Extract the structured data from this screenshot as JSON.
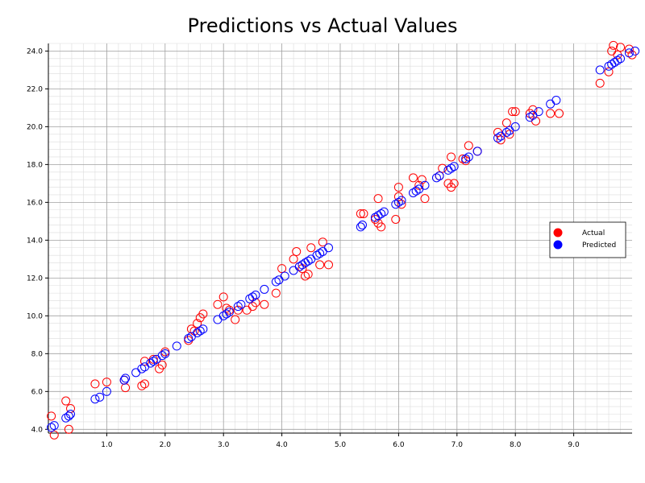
{
  "chart_data": {
    "type": "scatter",
    "title": "Predictions vs Actual Values",
    "xlabel": "",
    "ylabel": "",
    "xlim": [
      0,
      10
    ],
    "ylim": [
      3.8,
      24.4
    ],
    "x_ticks": [
      "1.0",
      "2.0",
      "3.0",
      "4.0",
      "5.0",
      "6.0",
      "7.0",
      "8.0",
      "9.0"
    ],
    "y_ticks": [
      "4.0",
      "6.0",
      "8.0",
      "10.0",
      "12.0",
      "14.0",
      "16.0",
      "18.0",
      "20.0",
      "22.0",
      "24.0"
    ],
    "grid": true,
    "legend_position": "center-right",
    "series": [
      {
        "name": "Actual",
        "color": "#ff0000",
        "marker": "open-circle",
        "points": [
          [
            0.05,
            4.7
          ],
          [
            0.1,
            3.7
          ],
          [
            0.3,
            5.5
          ],
          [
            0.35,
            4.0
          ],
          [
            0.38,
            5.1
          ],
          [
            0.8,
            6.4
          ],
          [
            1.0,
            6.5
          ],
          [
            1.3,
            6.6
          ],
          [
            1.32,
            6.2
          ],
          [
            1.6,
            6.3
          ],
          [
            1.65,
            6.4
          ],
          [
            1.65,
            7.6
          ],
          [
            1.8,
            7.7
          ],
          [
            1.9,
            7.2
          ],
          [
            1.95,
            7.4
          ],
          [
            2.0,
            8.1
          ],
          [
            2.4,
            8.7
          ],
          [
            2.45,
            9.3
          ],
          [
            2.5,
            9.2
          ],
          [
            2.55,
            9.6
          ],
          [
            2.6,
            9.9
          ],
          [
            2.65,
            10.1
          ],
          [
            2.9,
            10.6
          ],
          [
            3.0,
            11.0
          ],
          [
            3.05,
            10.4
          ],
          [
            3.1,
            10.3
          ],
          [
            3.2,
            9.8
          ],
          [
            3.25,
            10.3
          ],
          [
            3.4,
            10.3
          ],
          [
            3.5,
            10.5
          ],
          [
            3.55,
            10.7
          ],
          [
            3.7,
            10.6
          ],
          [
            3.9,
            11.2
          ],
          [
            4.0,
            12.5
          ],
          [
            4.2,
            13.0
          ],
          [
            4.25,
            13.4
          ],
          [
            4.3,
            12.6
          ],
          [
            4.35,
            12.5
          ],
          [
            4.4,
            12.1
          ],
          [
            4.45,
            12.2
          ],
          [
            4.5,
            13.6
          ],
          [
            4.65,
            12.7
          ],
          [
            4.7,
            13.9
          ],
          [
            4.8,
            12.7
          ],
          [
            5.35,
            15.4
          ],
          [
            5.4,
            15.4
          ],
          [
            5.6,
            15.1
          ],
          [
            5.65,
            14.9
          ],
          [
            5.65,
            16.2
          ],
          [
            5.7,
            14.7
          ],
          [
            5.95,
            15.1
          ],
          [
            6.0,
            16.3
          ],
          [
            6.0,
            16.8
          ],
          [
            6.05,
            15.9
          ],
          [
            6.25,
            17.3
          ],
          [
            6.35,
            16.9
          ],
          [
            6.4,
            17.2
          ],
          [
            6.45,
            16.2
          ],
          [
            6.7,
            17.4
          ],
          [
            6.75,
            17.8
          ],
          [
            6.85,
            17.0
          ],
          [
            6.9,
            16.8
          ],
          [
            6.9,
            18.4
          ],
          [
            6.95,
            17.0
          ],
          [
            7.1,
            18.3
          ],
          [
            7.15,
            18.2
          ],
          [
            7.2,
            19.0
          ],
          [
            7.35,
            18.7
          ],
          [
            7.7,
            19.7
          ],
          [
            7.75,
            19.3
          ],
          [
            7.85,
            20.2
          ],
          [
            7.9,
            19.6
          ],
          [
            7.95,
            20.8
          ],
          [
            8.0,
            20.8
          ],
          [
            8.25,
            20.7
          ],
          [
            8.3,
            20.9
          ],
          [
            8.35,
            20.3
          ],
          [
            8.6,
            20.7
          ],
          [
            8.75,
            20.7
          ],
          [
            9.45,
            22.3
          ],
          [
            9.6,
            22.9
          ],
          [
            9.65,
            24.0
          ],
          [
            9.68,
            24.3
          ],
          [
            9.75,
            23.8
          ],
          [
            9.8,
            24.2
          ],
          [
            9.95,
            24.1
          ],
          [
            10.0,
            23.8
          ]
        ]
      },
      {
        "name": "Predicted",
        "color": "#0000ff",
        "marker": "open-circle",
        "points": [
          [
            0.05,
            4.1
          ],
          [
            0.1,
            4.2
          ],
          [
            0.3,
            4.6
          ],
          [
            0.35,
            4.7
          ],
          [
            0.38,
            4.8
          ],
          [
            0.8,
            5.6
          ],
          [
            0.88,
            5.7
          ],
          [
            1.0,
            6.0
          ],
          [
            1.3,
            6.6
          ],
          [
            1.32,
            6.7
          ],
          [
            1.5,
            7.0
          ],
          [
            1.6,
            7.2
          ],
          [
            1.65,
            7.3
          ],
          [
            1.75,
            7.5
          ],
          [
            1.8,
            7.6
          ],
          [
            1.85,
            7.7
          ],
          [
            1.95,
            7.9
          ],
          [
            2.0,
            8.0
          ],
          [
            2.2,
            8.4
          ],
          [
            2.4,
            8.8
          ],
          [
            2.45,
            8.9
          ],
          [
            2.55,
            9.1
          ],
          [
            2.6,
            9.2
          ],
          [
            2.65,
            9.3
          ],
          [
            2.9,
            9.8
          ],
          [
            3.0,
            10.0
          ],
          [
            3.05,
            10.1
          ],
          [
            3.1,
            10.2
          ],
          [
            3.25,
            10.5
          ],
          [
            3.3,
            10.6
          ],
          [
            3.45,
            10.9
          ],
          [
            3.5,
            11.0
          ],
          [
            3.55,
            11.1
          ],
          [
            3.7,
            11.4
          ],
          [
            3.9,
            11.8
          ],
          [
            3.95,
            11.9
          ],
          [
            4.05,
            12.1
          ],
          [
            4.2,
            12.4
          ],
          [
            4.3,
            12.6
          ],
          [
            4.35,
            12.7
          ],
          [
            4.4,
            12.8
          ],
          [
            4.45,
            12.9
          ],
          [
            4.5,
            13.0
          ],
          [
            4.6,
            13.2
          ],
          [
            4.65,
            13.3
          ],
          [
            4.7,
            13.4
          ],
          [
            4.8,
            13.6
          ],
          [
            5.35,
            14.7
          ],
          [
            5.38,
            14.8
          ],
          [
            5.6,
            15.2
          ],
          [
            5.65,
            15.3
          ],
          [
            5.7,
            15.4
          ],
          [
            5.75,
            15.5
          ],
          [
            5.95,
            15.9
          ],
          [
            6.0,
            16.0
          ],
          [
            6.05,
            16.1
          ],
          [
            6.25,
            16.5
          ],
          [
            6.3,
            16.6
          ],
          [
            6.35,
            16.7
          ],
          [
            6.45,
            16.9
          ],
          [
            6.65,
            17.3
          ],
          [
            6.7,
            17.4
          ],
          [
            6.85,
            17.7
          ],
          [
            6.9,
            17.8
          ],
          [
            6.95,
            17.9
          ],
          [
            7.15,
            18.3
          ],
          [
            7.2,
            18.4
          ],
          [
            7.35,
            18.7
          ],
          [
            7.7,
            19.4
          ],
          [
            7.75,
            19.5
          ],
          [
            7.85,
            19.7
          ],
          [
            7.9,
            19.8
          ],
          [
            8.0,
            20.0
          ],
          [
            8.25,
            20.5
          ],
          [
            8.3,
            20.6
          ],
          [
            8.4,
            20.8
          ],
          [
            8.6,
            21.2
          ],
          [
            8.7,
            21.4
          ],
          [
            9.45,
            23.0
          ],
          [
            9.6,
            23.2
          ],
          [
            9.65,
            23.3
          ],
          [
            9.7,
            23.4
          ],
          [
            9.75,
            23.5
          ],
          [
            9.8,
            23.6
          ],
          [
            9.95,
            23.9
          ],
          [
            10.05,
            24.0
          ]
        ]
      }
    ]
  }
}
